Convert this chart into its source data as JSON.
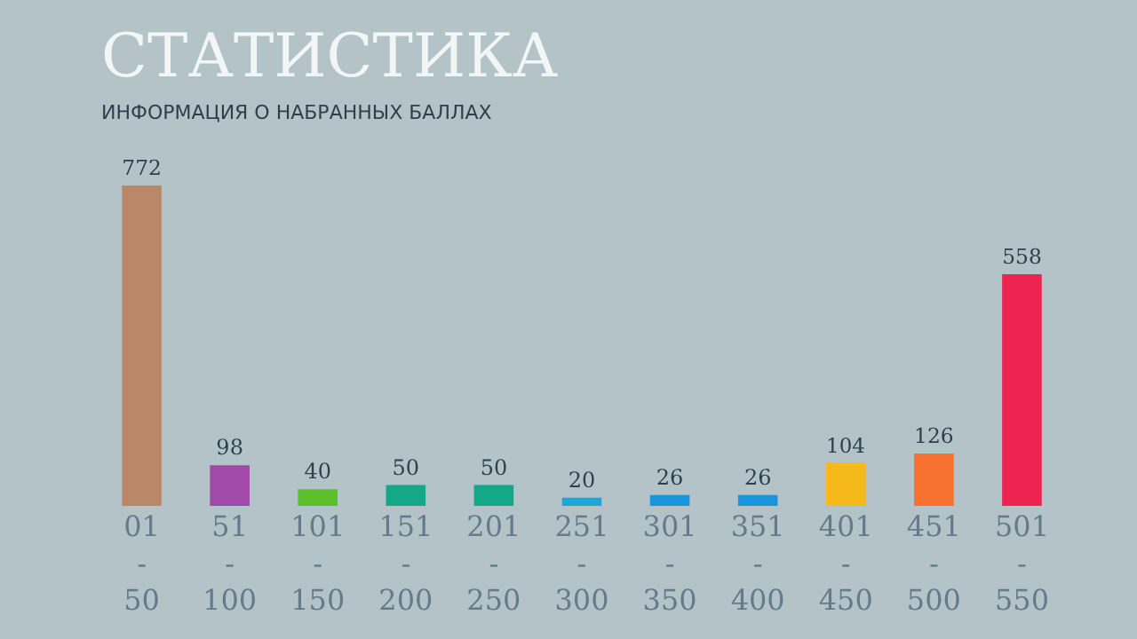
{
  "chart_data": {
    "type": "bar",
    "title": "СТАТИСТИКА",
    "subtitle": "ИНФОРМАЦИЯ О НАБРАННЫХ БАЛЛАХ",
    "categories": [
      "01\n-\n50",
      "51\n-\n100",
      "101\n-\n150",
      "151\n-\n200",
      "201\n-\n250",
      "251\n-\n300",
      "301\n-\n350",
      "351\n-\n400",
      "401\n-\n450",
      "451\n-\n500",
      "501\n-\n550"
    ],
    "values": [
      772,
      98,
      40,
      50,
      50,
      20,
      26,
      26,
      104,
      126,
      558
    ],
    "colors": [
      "#b98868",
      "#a24aa8",
      "#5cbf2a",
      "#15a888",
      "#15a888",
      "#1ea6d8",
      "#1996dc",
      "#1996dc",
      "#f6b91a",
      "#f7722e",
      "#ee2450"
    ],
    "data_labels": true,
    "legend": false
  }
}
